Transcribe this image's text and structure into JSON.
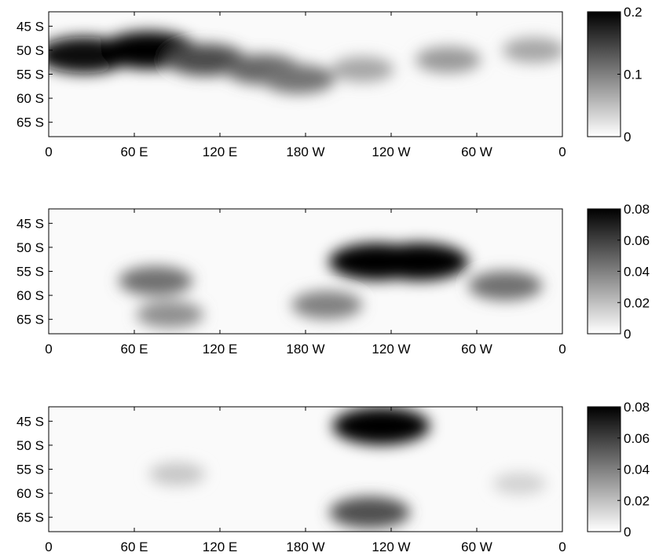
{
  "chart_data": [
    {
      "type": "heatmap",
      "colormap": "gray-reversed",
      "x_ticks": [
        "0",
        "60 E",
        "120 E",
        "180 W",
        "120 W",
        "60 W",
        "0"
      ],
      "y_ticks": [
        "45 S",
        "50 S",
        "55 S",
        "60 S",
        "65 S"
      ],
      "colorbar": {
        "min": 0,
        "max": 0.2,
        "ticks": [
          "0.2",
          "0.1",
          "0"
        ]
      },
      "features": [
        {
          "lon": 25,
          "lat": -51,
          "value": 0.19
        },
        {
          "lon": 70,
          "lat": -50,
          "value": 0.2
        },
        {
          "lon": 110,
          "lat": -52,
          "value": 0.14
        },
        {
          "lon": 150,
          "lat": -54,
          "value": 0.12
        },
        {
          "lon": 175,
          "lat": -56,
          "value": 0.11
        },
        {
          "lon": 220,
          "lat": -54,
          "value": 0.07
        },
        {
          "lon": 280,
          "lat": -52,
          "value": 0.08
        },
        {
          "lon": 340,
          "lat": -50,
          "value": 0.07
        }
      ]
    },
    {
      "type": "heatmap",
      "colormap": "gray-reversed",
      "x_ticks": [
        "0",
        "60 E",
        "120 E",
        "180 W",
        "120 W",
        "60 W",
        "0"
      ],
      "y_ticks": [
        "45 S",
        "50 S",
        "55 S",
        "60 S",
        "65 S"
      ],
      "colorbar": {
        "min": 0,
        "max": 0.08,
        "ticks": [
          "0.08",
          "0.06",
          "0.04",
          "0.02",
          "0"
        ]
      },
      "features": [
        {
          "lon": 75,
          "lat": -57,
          "value": 0.045
        },
        {
          "lon": 85,
          "lat": -64,
          "value": 0.035
        },
        {
          "lon": 230,
          "lat": -53,
          "value": 0.078
        },
        {
          "lon": 260,
          "lat": -53,
          "value": 0.08
        },
        {
          "lon": 195,
          "lat": -62,
          "value": 0.04
        },
        {
          "lon": 320,
          "lat": -58,
          "value": 0.045
        }
      ]
    },
    {
      "type": "heatmap",
      "colormap": "gray-reversed",
      "x_ticks": [
        "0",
        "60 E",
        "120 E",
        "180 W",
        "120 W",
        "60 W",
        "0"
      ],
      "y_ticks": [
        "45 S",
        "50 S",
        "55 S",
        "60 S",
        "65 S"
      ],
      "colorbar": {
        "min": 0,
        "max": 0.08,
        "ticks": [
          "0.08",
          "0.06",
          "0.04",
          "0.02",
          "0"
        ]
      },
      "features": [
        {
          "lon": 233,
          "lat": -46,
          "value": 0.08
        },
        {
          "lon": 225,
          "lat": -64,
          "value": 0.055
        },
        {
          "lon": 90,
          "lat": -56,
          "value": 0.018
        },
        {
          "lon": 330,
          "lat": -58,
          "value": 0.014
        }
      ]
    }
  ]
}
